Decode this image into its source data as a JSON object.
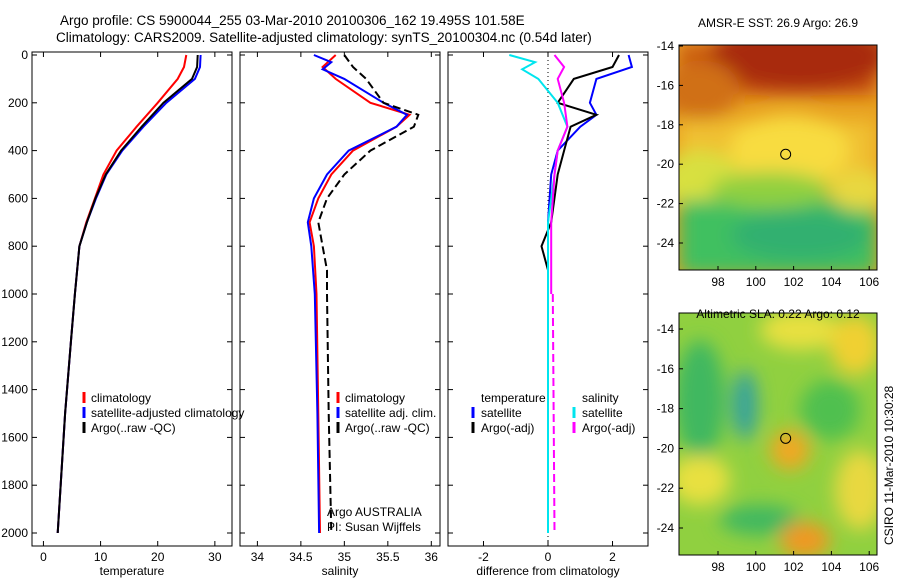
{
  "title_line1": "Argo profile: CS 5900044_255 03-Mar-2010 20100306_162 19.495S 101.58E",
  "title_line2": "Climatology: CARS2009. Satellite-adjusted climatology: synTS_20100304.nc (0.54d later)",
  "footer": "CSIRO 11-Mar-2010 10:30:28",
  "colors": {
    "climatology": "#ff0000",
    "satellite": "#0000ff",
    "argo": "#000000",
    "sal_satellite": "#00e5ee",
    "sal_argo": "#ff00ff"
  },
  "chart_data": [
    {
      "type": "line",
      "xlabel": "temperature",
      "xlim": [
        -2,
        33
      ],
      "ylim": [
        2000,
        0
      ],
      "xticks": [
        0,
        10,
        20,
        30
      ],
      "yticks": [
        0,
        200,
        400,
        600,
        800,
        1000,
        1200,
        1400,
        1600,
        1800,
        2000
      ],
      "legend": [
        "climatology",
        "satellite-adjusted climatology",
        "Argo(..raw -QC)"
      ],
      "series": [
        {
          "name": "climatology",
          "color": "#ff0000",
          "depth": [
            0,
            50,
            100,
            200,
            300,
            400,
            500,
            600,
            700,
            800,
            1000,
            1200,
            1500,
            2000
          ],
          "values": [
            25,
            24.6,
            23.5,
            20,
            16.3,
            12.8,
            10.5,
            9,
            7.5,
            6.3,
            5.5,
            4.8,
            3.8,
            2.5
          ]
        },
        {
          "name": "satellite-adjusted climatology",
          "color": "#0000ff",
          "depth": [
            0,
            50,
            100,
            200,
            300,
            400,
            500,
            600,
            700,
            800,
            1000,
            1200,
            1500,
            2000
          ],
          "values": [
            27.5,
            27.4,
            26.5,
            21.5,
            17.5,
            13.8,
            11,
            9.2,
            7.6,
            6.3,
            5.5,
            4.8,
            3.8,
            2.5
          ]
        },
        {
          "name": "Argo(..raw -QC)",
          "color": "#000000",
          "depth": [
            0,
            50,
            100,
            200,
            300,
            400,
            500,
            600,
            700,
            800,
            1000,
            1200,
            1500,
            2000
          ],
          "values": [
            27,
            26.9,
            26,
            21,
            17.2,
            13.6,
            10.9,
            9.1,
            7.6,
            6.3,
            5.5,
            4.8,
            3.8,
            2.5
          ]
        }
      ]
    },
    {
      "type": "line",
      "xlabel": "salinity",
      "xlim": [
        33.8,
        36.1
      ],
      "ylim": [
        2000,
        0
      ],
      "xticks": [
        34,
        34.5,
        35,
        35.5,
        36
      ],
      "xtick_labels": [
        "34",
        "34.5",
        "35",
        "35.5",
        "36"
      ],
      "legend": [
        "climatology",
        "satellite adj. clim.",
        "Argo(..raw -QC)"
      ],
      "annotation": [
        "Argo AUSTRALIA",
        "PI: Susan Wijffels"
      ],
      "series": [
        {
          "name": "climatology",
          "color": "#ff0000",
          "depth": [
            0,
            50,
            100,
            200,
            250,
            300,
            400,
            500,
            600,
            700,
            800,
            1000,
            1500,
            2000
          ],
          "values": [
            34.9,
            34.75,
            34.9,
            35.3,
            35.75,
            35.6,
            35.1,
            34.85,
            34.7,
            34.6,
            34.65,
            34.68,
            34.7,
            34.72
          ]
        },
        {
          "name": "satellite adj. clim.",
          "color": "#0000ff",
          "depth": [
            0,
            30,
            60,
            100,
            200,
            250,
            300,
            400,
            500,
            600,
            700,
            800,
            1000,
            1500,
            2000
          ],
          "values": [
            34.65,
            34.85,
            34.75,
            35.0,
            35.45,
            35.72,
            35.6,
            35.05,
            34.8,
            34.65,
            34.58,
            34.62,
            34.66,
            34.69,
            34.71
          ]
        },
        {
          "name": "Argo(..raw -QC)",
          "color": "#000000",
          "dash": true,
          "depth": [
            0,
            50,
            100,
            200,
            250,
            300,
            400,
            500,
            600,
            700,
            800,
            900,
            1000,
            1500,
            2000
          ],
          "values": [
            35.0,
            35.1,
            35.25,
            35.45,
            35.85,
            35.8,
            35.3,
            35.0,
            34.8,
            34.7,
            34.75,
            34.8,
            34.8,
            34.82,
            34.85
          ]
        }
      ]
    },
    {
      "type": "line",
      "xlabel": "difference from climatology",
      "xlim": [
        -3.1,
        3.1
      ],
      "ylim": [
        2000,
        0
      ],
      "xticks": [
        -2,
        0,
        2
      ],
      "legend_titles": [
        "temperature",
        "salinity"
      ],
      "legend": [
        "satellite",
        "Argo(-adj)",
        "satellite",
        "Argo(-adj)"
      ],
      "series": [
        {
          "name": "temperature satellite",
          "color": "#0000ff",
          "depth": [
            0,
            50,
            100,
            200,
            250,
            300,
            400,
            500,
            700,
            900,
            1200,
            1400,
            2000
          ],
          "values": [
            2.5,
            2.6,
            1.5,
            1.3,
            1.5,
            1.0,
            0.3,
            0.1,
            0,
            0,
            0,
            0,
            0
          ]
        },
        {
          "name": "temperature Argo(-adj)",
          "color": "#000000",
          "depth": [
            0,
            50,
            100,
            200,
            250,
            300,
            400,
            500,
            700,
            800,
            900,
            1000,
            1400,
            2000
          ],
          "values": [
            2.2,
            2.0,
            0.8,
            0.3,
            1.5,
            0.7,
            0.5,
            0.3,
            0.1,
            -0.2,
            0,
            0,
            0,
            0
          ]
        },
        {
          "name": "salinity satellite",
          "color": "#00e5ee",
          "depth": [
            0,
            30,
            60,
            100,
            200,
            300,
            400,
            500,
            700,
            900,
            1500,
            2000
          ],
          "values": [
            -1.2,
            -0.4,
            -0.8,
            -0.3,
            0.3,
            0.6,
            0.3,
            0.2,
            0,
            0,
            0,
            0
          ]
        },
        {
          "name": "salinity Argo(-adj)",
          "color": "#ff00ff",
          "depth": [
            0,
            50,
            100,
            200,
            300,
            400,
            500,
            700,
            1000
          ],
          "values": [
            0.2,
            0.5,
            0.3,
            0.5,
            0.6,
            0.3,
            0.2,
            0.1,
            0.1
          ]
        },
        {
          "name": "salinity Argo(-adj) deep",
          "color": "#ff00ff",
          "dash": true,
          "depth": [
            1000,
            2000
          ],
          "values": [
            0.15,
            0.2
          ]
        }
      ]
    },
    {
      "type": "heatmap",
      "title": "AMSR-E SST: 26.9 Argo: 26.9",
      "xlim": [
        96,
        107
      ],
      "ylim": [
        -25.4,
        -13.5
      ],
      "xticks": [
        98,
        100,
        102,
        104,
        106
      ],
      "yticks": [
        -14,
        -16,
        -18,
        -20,
        -22,
        -24
      ],
      "marker": [
        101.58,
        -19.495
      ]
    },
    {
      "type": "heatmap",
      "title": "Altimetric SLA: 0.22 Argo: 0.12",
      "xlim": [
        96,
        107
      ],
      "ylim": [
        -25.3,
        -13.3
      ],
      "xticks": [
        98,
        100,
        102,
        104,
        106
      ],
      "yticks": [
        -14,
        -16,
        -18,
        -20,
        -22,
        -24
      ],
      "marker": [
        101.58,
        -19.495
      ]
    }
  ]
}
